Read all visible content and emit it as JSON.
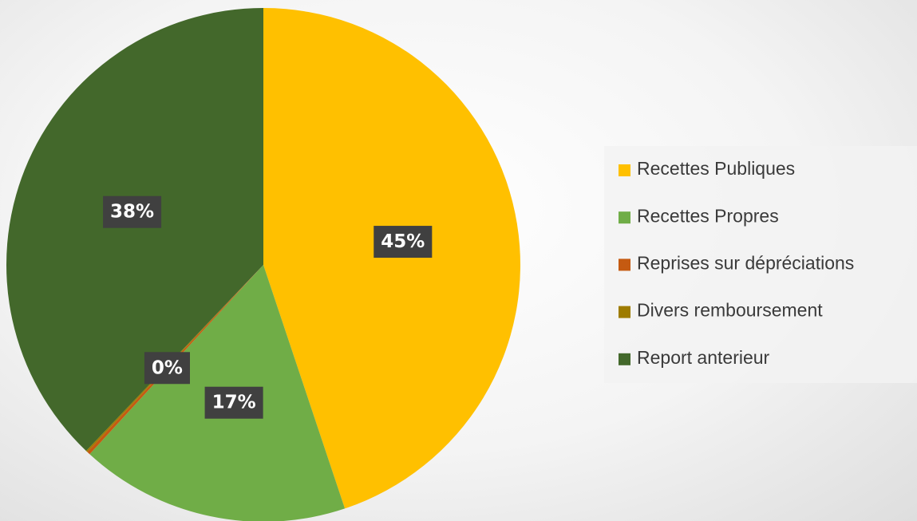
{
  "chart_data": {
    "type": "pie",
    "categories": [
      "Recettes Publiques",
      "Recettes Propres",
      "Reprises sur dépréciations",
      "Divers remboursement",
      "Report anterieur"
    ],
    "values": [
      45,
      17,
      0.2,
      0.1,
      38
    ],
    "value_labels": [
      "45%",
      "17%",
      "0%",
      null,
      "38%"
    ],
    "colors": [
      "#ffc000",
      "#70ad47",
      "#c55a11",
      "#9e7c00",
      "#43682b"
    ],
    "legend": "right"
  }
}
